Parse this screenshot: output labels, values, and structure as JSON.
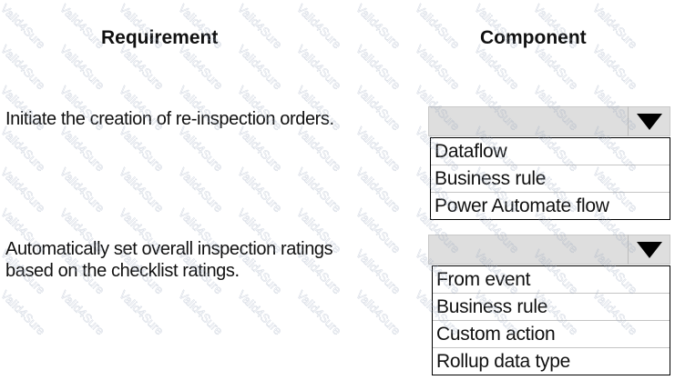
{
  "watermark": "Valid4Sure",
  "headers": {
    "requirement": "Requirement",
    "component": "Component"
  },
  "rows": [
    {
      "requirement": "Initiate the creation of re-inspection orders.",
      "selected": "",
      "options": [
        "Dataflow",
        "Business rule",
        "Power Automate flow"
      ]
    },
    {
      "requirement_lines": [
        "Automatically set overall inspection ratings",
        "based on the checklist ratings."
      ],
      "selected": "",
      "options": [
        "From event",
        "Business rule",
        "Custom action",
        "Rollup data type"
      ]
    }
  ]
}
